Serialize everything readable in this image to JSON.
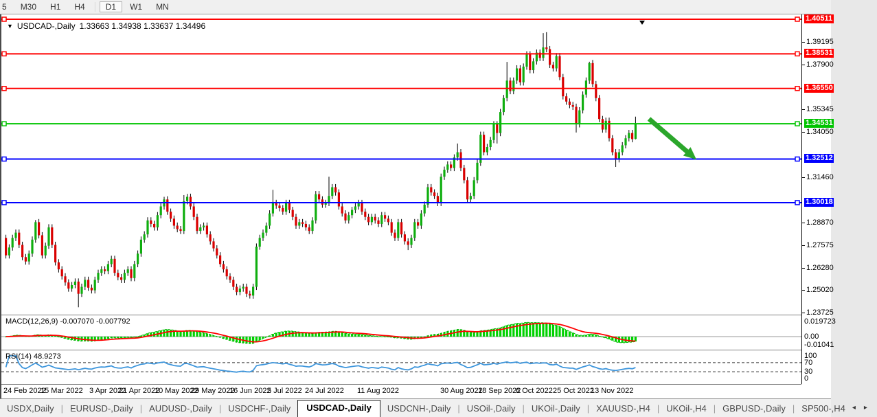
{
  "toolbar": {
    "periods": [
      {
        "label": "5",
        "active": false
      },
      {
        "label": "M30",
        "active": false
      },
      {
        "label": "H1",
        "active": false
      },
      {
        "label": "H4",
        "active": false
      },
      {
        "label": "D1",
        "active": true
      },
      {
        "label": "W1",
        "active": false
      },
      {
        "label": "MN",
        "active": false
      }
    ]
  },
  "title": {
    "symbol": "USDCAD-,Daily",
    "quotes": "1.33663 1.34938 1.33637 1.34496",
    "dropdown_icon": "▼"
  },
  "chart_data": {
    "type": "candlestick",
    "symbol": "USDCAD-,Daily",
    "ylim": [
      1.23725,
      1.40511
    ],
    "first_open": 1.28,
    "closes": [
      1.27,
      1.2745,
      1.28,
      1.283,
      1.276,
      1.269,
      1.2665,
      1.271,
      1.279,
      1.289,
      1.2815,
      1.27,
      1.2755,
      1.286,
      1.276,
      1.266,
      1.262,
      1.258,
      1.2545,
      1.251,
      1.253,
      1.255,
      1.248,
      1.252,
      1.256,
      1.2515,
      1.25,
      1.256,
      1.26,
      1.262,
      1.261,
      1.265,
      1.268,
      1.26,
      1.2575,
      1.256,
      1.26,
      1.262,
      1.257,
      1.265,
      1.271,
      1.279,
      1.282,
      1.29,
      1.288,
      1.286,
      1.293,
      1.298,
      1.302,
      1.295,
      1.291,
      1.287,
      1.285,
      1.284,
      1.301,
      1.3035,
      1.298,
      1.292,
      1.284,
      1.286,
      1.287,
      1.282,
      1.278,
      1.274,
      1.27,
      1.265,
      1.262,
      1.258,
      1.256,
      1.252,
      1.249,
      1.251,
      1.252,
      1.248,
      1.247,
      1.252,
      1.275,
      1.28,
      1.283,
      1.287,
      1.294,
      1.3,
      1.2985,
      1.297,
      1.295,
      1.3,
      1.296,
      1.292,
      1.287,
      1.289,
      1.288,
      1.286,
      1.284,
      1.29,
      1.305,
      1.302,
      1.299,
      1.3,
      1.304,
      1.309,
      1.306,
      1.298,
      1.294,
      1.29,
      1.293,
      1.296,
      1.298,
      1.3,
      1.295,
      1.292,
      1.289,
      1.292,
      1.29,
      1.288,
      1.293,
      1.291,
      1.289,
      1.283,
      1.28,
      1.289,
      1.282,
      1.278,
      1.276,
      1.28,
      1.289,
      1.287,
      1.294,
      1.299,
      1.309,
      1.306,
      1.304,
      1.3,
      1.315,
      1.319,
      1.322,
      1.32,
      1.326,
      1.329,
      1.32,
      1.313,
      1.302,
      1.304,
      1.313,
      1.323,
      1.339,
      1.329,
      1.332,
      1.336,
      1.345,
      1.34,
      1.352,
      1.36,
      1.37,
      1.364,
      1.37,
      1.377,
      1.369,
      1.378,
      1.385,
      1.376,
      1.381,
      1.386,
      1.383,
      1.389,
      1.388,
      1.379,
      1.377,
      1.384,
      1.372,
      1.361,
      1.358,
      1.356,
      1.355,
      1.345,
      1.353,
      1.362,
      1.37,
      1.38,
      1.368,
      1.36,
      1.348,
      1.342,
      1.347,
      1.337,
      1.329,
      1.325,
      1.329,
      1.333,
      1.337,
      1.34,
      1.3365,
      1.34496
    ],
    "open_overrides": {
      "191": 1.33663
    },
    "wick_overrides": {
      "9": {
        "h": 1.2902
      },
      "22": {
        "l": 1.2403
      },
      "48": {
        "h": 1.3035
      },
      "54": {
        "h": 1.3045
      },
      "55": {
        "h": 1.3052
      },
      "74": {
        "l": 1.2453
      },
      "81": {
        "h": 1.3075
      },
      "98": {
        "h": 1.315
      },
      "122": {
        "l": 1.273
      },
      "137": {
        "h": 1.334
      },
      "149": {
        "l": 1.334
      },
      "152": {
        "h": 1.3807
      },
      "163": {
        "h": 1.3972
      },
      "164": {
        "h": 1.3977
      },
      "173": {
        "l": 1.3403
      },
      "177": {
        "h": 1.3808
      },
      "185": {
        "l": 1.3206
      },
      "191": {
        "h": 1.34938,
        "l": 1.33637
      }
    },
    "h_lines": [
      {
        "price": 1.40511,
        "color": "#ff0000",
        "label": "1.40511"
      },
      {
        "price": 1.38531,
        "color": "#ff0000",
        "label": "1.38531"
      },
      {
        "price": 1.3655,
        "color": "#ff0000",
        "label": "1.36550"
      },
      {
        "price": 1.34531,
        "color": "#00c400",
        "label": "1.34531"
      },
      {
        "price": 1.32512,
        "color": "#0000ff",
        "label": "1.32512"
      },
      {
        "price": 1.30018,
        "color": "#0000ff",
        "label": "1.30018"
      }
    ],
    "axis_ticks": [
      "1.39195",
      "1.37900",
      "1.35345",
      "1.34050",
      "1.31460",
      "1.28870",
      "1.27575",
      "1.26280",
      "1.25020",
      "1.23725"
    ],
    "x_axis_dates": [
      {
        "label": "24 Feb 2022",
        "x": 3
      },
      {
        "label": "15 Mar 2022",
        "x": 57
      },
      {
        "label": "3 Apr 2022",
        "x": 128
      },
      {
        "label": "21 Apr 2022",
        "x": 171
      },
      {
        "label": "10 May 2022",
        "x": 223
      },
      {
        "label": "29 May 2022",
        "x": 276
      },
      {
        "label": "16 Jun 2022",
        "x": 332
      },
      {
        "label": "5 Jul 2022",
        "x": 387
      },
      {
        "label": "24 Jul 2022",
        "x": 442
      },
      {
        "label": "11 Aug 2022",
        "x": 518
      },
      {
        "label": "30 Aug 2022",
        "x": 639
      },
      {
        "label": "18 Sep 2022",
        "x": 694
      },
      {
        "label": "6 Oct 2022",
        "x": 749
      },
      {
        "label": "25 Oct 2022",
        "x": 803
      },
      {
        "label": "13 Nov 2022",
        "x": 858
      }
    ],
    "arrow_annotation": {
      "x1": 943,
      "y1": 152,
      "x2": 1006,
      "y2": 206,
      "color": "#2ba62b"
    },
    "shift_marker_x": 933
  },
  "macd": {
    "label": "MACD(12,26,9) -0.007070 -0.007792",
    "axis_labels": [
      {
        "text": "0.019723",
        "value": 0.019723
      },
      {
        "text": "0.00",
        "value": 0.0
      },
      {
        "text": "-0.01041",
        "value": -0.01041
      }
    ]
  },
  "rsi": {
    "label": "RSI(14) 48.9273",
    "levels": [
      70,
      30
    ],
    "axis_labels": [
      {
        "text": "100",
        "value": 100
      },
      {
        "text": "70",
        "value": 70
      },
      {
        "text": "30",
        "value": 30
      },
      {
        "text": "0",
        "value": 0
      }
    ]
  },
  "tabs": {
    "items": [
      {
        "label": "USDX,Daily",
        "active": false
      },
      {
        "label": "EURUSD-,Daily",
        "active": false
      },
      {
        "label": "AUDUSD-,Daily",
        "active": false
      },
      {
        "label": "USDCHF-,Daily",
        "active": false
      },
      {
        "label": "USDCAD-,Daily",
        "active": true
      },
      {
        "label": "USDCNH-,Daily",
        "active": false
      },
      {
        "label": "USOil-,Daily",
        "active": false
      },
      {
        "label": "UKOil-,Daily",
        "active": false
      },
      {
        "label": "XAUUSD-,H4",
        "active": false
      },
      {
        "label": "UKOil-,H4",
        "active": false
      },
      {
        "label": "GBPUSD-,Daily",
        "active": false
      },
      {
        "label": "SP500-,H4",
        "active": false
      }
    ],
    "scroll_left_icon": "◂",
    "scroll_right_icon": "▸"
  },
  "colors": {
    "candle_up": "#0fae0f",
    "candle_down": "#d90000",
    "wick": "#000000",
    "macd_bar": "#00d200",
    "macd_signal": "#ff0000",
    "macd_line": "#00b000",
    "rsi_line": "#3e96dc",
    "badge_text": "#ffffff"
  }
}
